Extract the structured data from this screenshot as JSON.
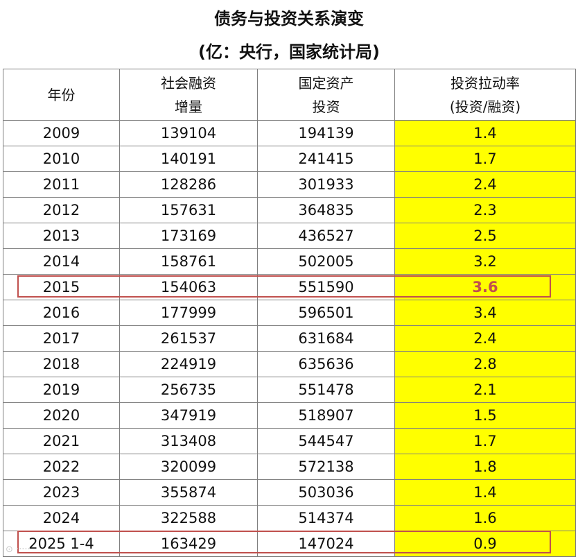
{
  "title": {
    "line1": "债务与投资关系演变",
    "line2": "(亿：央行，国家统计局)"
  },
  "table": {
    "headers": {
      "year": "年份",
      "financing": [
        "社会融资",
        "增量"
      ],
      "investment": [
        "国定资产",
        "投资"
      ],
      "ratio": [
        "投资拉动率",
        "(投资/融资)"
      ]
    },
    "rows": [
      {
        "year": "2009",
        "financing": "139104",
        "investment": "194139",
        "ratio": "1.4"
      },
      {
        "year": "2010",
        "financing": "140191",
        "investment": "241415",
        "ratio": "1.7"
      },
      {
        "year": "2011",
        "financing": "128286",
        "investment": "301933",
        "ratio": "2.4"
      },
      {
        "year": "2012",
        "financing": "157631",
        "investment": "364835",
        "ratio": "2.3"
      },
      {
        "year": "2013",
        "financing": "173169",
        "investment": "436527",
        "ratio": "2.5"
      },
      {
        "year": "2014",
        "financing": "158761",
        "investment": "502005",
        "ratio": "3.2"
      },
      {
        "year": "2015",
        "financing": "154063",
        "investment": "551590",
        "ratio": "3.6",
        "highlight": true
      },
      {
        "year": "2016",
        "financing": "177999",
        "investment": "596501",
        "ratio": "3.4"
      },
      {
        "year": "2017",
        "financing": "261537",
        "investment": "631684",
        "ratio": "2.4"
      },
      {
        "year": "2018",
        "financing": "224919",
        "investment": "635636",
        "ratio": "2.8"
      },
      {
        "year": "2019",
        "financing": "256735",
        "investment": "551478",
        "ratio": "2.1"
      },
      {
        "year": "2020",
        "financing": "347919",
        "investment": "518907",
        "ratio": "1.5"
      },
      {
        "year": "2021",
        "financing": "313408",
        "investment": "544547",
        "ratio": "1.7"
      },
      {
        "year": "2022",
        "financing": "320099",
        "investment": "572138",
        "ratio": "1.8"
      },
      {
        "year": "2023",
        "financing": "355874",
        "investment": "503036",
        "ratio": "1.4"
      },
      {
        "year": "2024",
        "financing": "322588",
        "investment": "514374",
        "ratio": "1.6"
      },
      {
        "year": "2025 1-4",
        "financing": "163429",
        "investment": "147024",
        "ratio": "0.9",
        "highlight": true
      }
    ]
  },
  "colors": {
    "ratio_fill": "#ffff00",
    "highlight_border": "#c0504d",
    "grid_line": "#7f7f7f"
  }
}
